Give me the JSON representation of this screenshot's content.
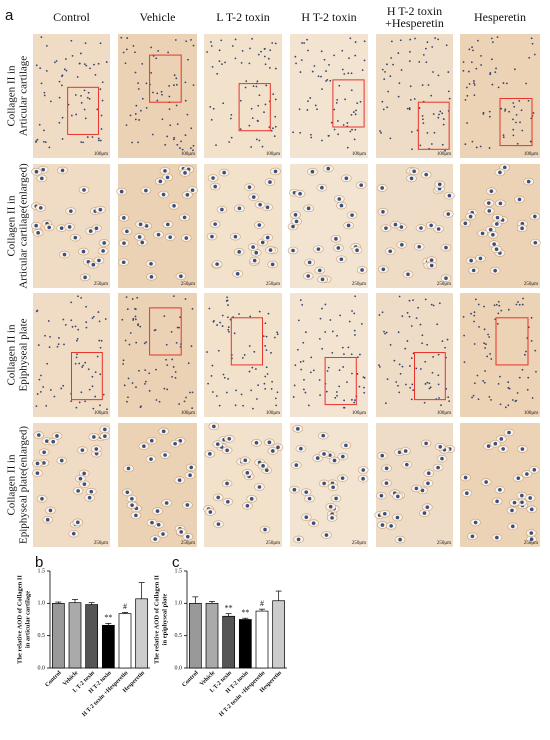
{
  "panel_labels": [
    "a",
    "b",
    "c"
  ],
  "column_headers": [
    [
      "Control"
    ],
    [
      "Vehicle"
    ],
    [
      "L T-2 toxin"
    ],
    [
      "H T-2 toxin"
    ],
    [
      "H T-2  toxin",
      "+Hesperetin"
    ],
    [
      "Hesperetin"
    ]
  ],
  "row_labels": [
    [
      "Collagen II in",
      "Articular cartilage"
    ],
    [
      "Collagen II in",
      "Articular cartilage(enlarged)"
    ],
    [
      "Collagen II in",
      "Epiphyseal plate"
    ],
    [
      "Collagen II in",
      "Epiphyseal plate(enlarged)"
    ]
  ],
  "scale_bars": [
    "100μm",
    "250μm",
    "100μm",
    "250μm"
  ],
  "chart_data": [
    {
      "type": "bar",
      "y_label": [
        "The relative AOD of Collagen II",
        "in articular cartilage"
      ],
      "categories": [
        "Control",
        "Vehicle",
        "L T-2 toxin",
        "H T-2 toxin",
        "H T-2 toxin +Hesperetin",
        "Hesperetin"
      ],
      "values": [
        1.0,
        1.01,
        0.98,
        0.66,
        0.84,
        1.07
      ],
      "errors": [
        0.02,
        0.05,
        0.03,
        0.03,
        0.02,
        0.25
      ],
      "annotations": [
        null,
        null,
        null,
        "**",
        "#",
        null
      ],
      "colors": [
        "#999999",
        "#aaaaaa",
        "#555555",
        "#000000",
        "#ffffff",
        "#cccccc"
      ],
      "ylim": [
        0,
        1.5
      ],
      "yticks": [
        {
          "value": 0,
          "label": "0.0"
        },
        {
          "value": 0.5,
          "label": "0.5"
        },
        {
          "value": 1,
          "label": "1.0"
        },
        {
          "value": 1.5,
          "label": "1.5"
        }
      ]
    },
    {
      "type": "bar",
      "y_label": [
        "The relative AOD of Collagen II",
        "in epiphyseal plate"
      ],
      "categories": [
        "Control",
        "Vehicle",
        "L T-2 toxin",
        "H T-2 toxin",
        "H T-2 toxin +Hesperetin",
        "Hesperetin"
      ],
      "values": [
        1.0,
        1.0,
        0.8,
        0.75,
        0.88,
        1.04
      ],
      "errors": [
        0.1,
        0.03,
        0.04,
        0.02,
        0.03,
        0.15
      ],
      "annotations": [
        null,
        null,
        "**",
        "**",
        "#",
        null
      ],
      "colors": [
        "#999999",
        "#aaaaaa",
        "#555555",
        "#000000",
        "#ffffff",
        "#cccccc"
      ],
      "ylim": [
        0,
        1.5
      ],
      "yticks": [
        {
          "value": 0,
          "label": "0.0"
        },
        {
          "value": 0.5,
          "label": "0.5"
        },
        {
          "value": 1,
          "label": "1.0"
        },
        {
          "value": 1.5,
          "label": "1.5"
        }
      ]
    }
  ]
}
